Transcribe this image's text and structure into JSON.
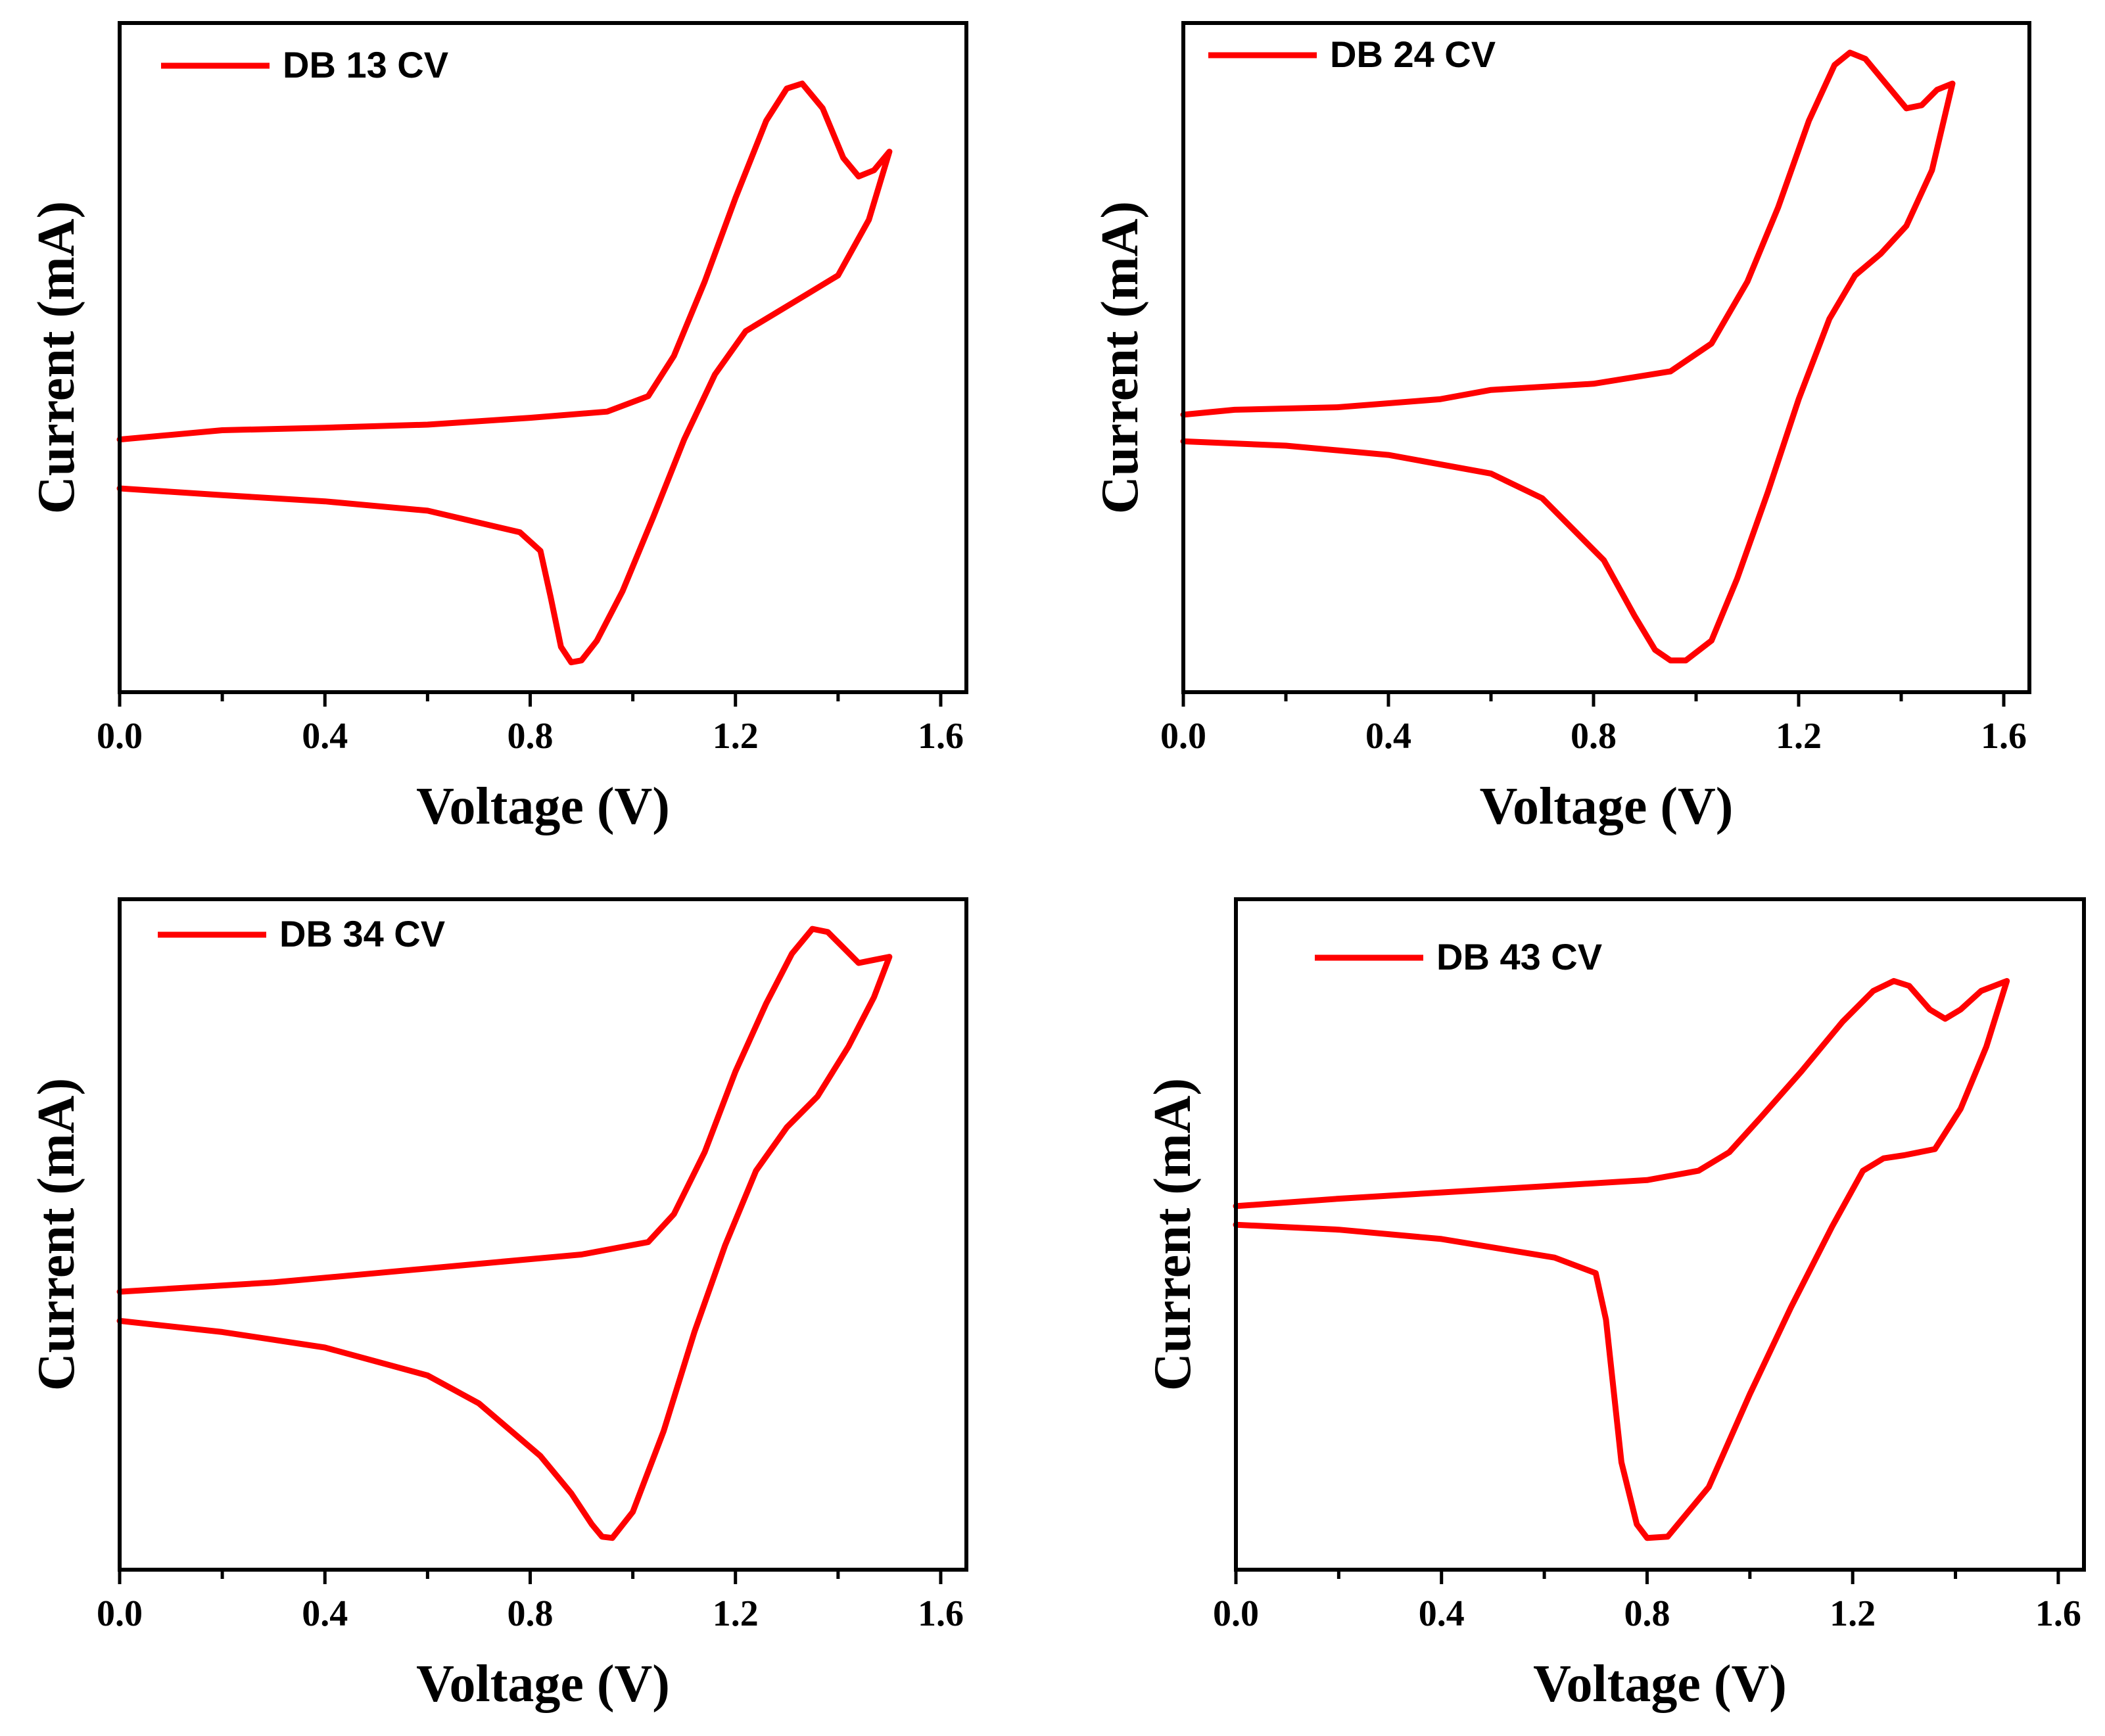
{
  "figure": {
    "line_color": "#ff0000",
    "axis_color": "#000000"
  },
  "chart_data": [
    {
      "type": "line",
      "legend": "DB 13 CV",
      "legend_placement": "top-left",
      "xlabel": "Voltage (V)",
      "ylabel": "Current (mA)",
      "xlim": [
        0.0,
        1.65
      ],
      "ylim": [
        0,
        100
      ],
      "y_ticks_shown": false,
      "x_ticks": [
        "0.0",
        "0.4",
        "0.8",
        "1.2",
        "1.6"
      ],
      "series": [
        {
          "name": "DB 13 CV",
          "x": [
            0.0,
            0.2,
            0.4,
            0.6,
            0.8,
            0.95,
            1.03,
            1.08,
            1.14,
            1.2,
            1.26,
            1.3,
            1.33,
            1.37,
            1.41,
            1.44,
            1.47,
            1.5,
            1.46,
            1.4,
            1.34,
            1.28,
            1.22,
            1.16,
            1.1,
            1.04,
            0.98,
            0.93,
            0.9,
            0.88,
            0.86,
            0.84,
            0.82,
            0.78,
            0.6,
            0.4,
            0.2,
            0.0
          ],
          "y": [
            36.5,
            38.0,
            38.4,
            38.9,
            40.0,
            41.0,
            43.5,
            50.0,
            62.0,
            75.5,
            88.0,
            93.2,
            94.0,
            90.0,
            82.0,
            79.0,
            80.0,
            83.0,
            72.0,
            63.0,
            60.0,
            57.0,
            54.0,
            47.0,
            36.5,
            24.0,
            12.0,
            4.0,
            0.8,
            0.5,
            3.0,
            11.0,
            18.5,
            21.5,
            25.0,
            26.5,
            27.5,
            28.6
          ]
        }
      ]
    },
    {
      "type": "line",
      "legend": "DB 24 CV",
      "legend_placement": "top-left",
      "xlabel": "Voltage (V)",
      "ylabel": "Current (mA)",
      "xlim": [
        0.0,
        1.65
      ],
      "ylim": [
        0,
        100
      ],
      "y_ticks_shown": false,
      "x_ticks": [
        "0.0",
        "0.4",
        "0.8",
        "1.2",
        "1.6"
      ],
      "series": [
        {
          "name": "DB 24 CV",
          "x": [
            0.0,
            0.1,
            0.3,
            0.5,
            0.6,
            0.8,
            0.95,
            1.03,
            1.1,
            1.16,
            1.22,
            1.27,
            1.3,
            1.33,
            1.37,
            1.41,
            1.44,
            1.47,
            1.5,
            1.46,
            1.41,
            1.36,
            1.31,
            1.26,
            1.2,
            1.14,
            1.08,
            1.03,
            0.98,
            0.95,
            0.92,
            0.88,
            0.82,
            0.7,
            0.6,
            0.4,
            0.2,
            0.0
          ],
          "y": [
            40.5,
            41.3,
            41.7,
            43.0,
            44.5,
            45.5,
            47.5,
            52.0,
            62.0,
            74.0,
            88.0,
            97.0,
            99.0,
            98.0,
            94.0,
            90.0,
            90.5,
            93.0,
            94.0,
            80.0,
            71.0,
            66.5,
            63.0,
            56.0,
            43.0,
            28.0,
            14.0,
            4.0,
            0.8,
            0.8,
            2.5,
            8.0,
            17.0,
            27.0,
            31.0,
            34.0,
            35.5,
            36.2
          ]
        }
      ]
    },
    {
      "type": "line",
      "legend": "DB 34 CV",
      "legend_placement": "top-left",
      "xlabel": "Voltage (V)",
      "ylabel": "Current (mA)",
      "xlim": [
        0.0,
        1.65
      ],
      "ylim": [
        0,
        100
      ],
      "y_ticks_shown": false,
      "x_ticks": [
        "0.0",
        "0.4",
        "0.8",
        "1.2",
        "1.6"
      ],
      "series": [
        {
          "name": "DB 34 CV",
          "x": [
            0.0,
            0.1,
            0.3,
            0.5,
            0.7,
            0.9,
            1.03,
            1.08,
            1.14,
            1.2,
            1.26,
            1.31,
            1.35,
            1.38,
            1.41,
            1.44,
            1.47,
            1.5,
            1.47,
            1.42,
            1.36,
            1.3,
            1.24,
            1.18,
            1.12,
            1.06,
            1.0,
            0.96,
            0.94,
            0.92,
            0.88,
            0.82,
            0.7,
            0.6,
            0.4,
            0.2,
            0.0
          ],
          "y": [
            40.5,
            41.0,
            42.0,
            43.5,
            45.0,
            46.5,
            48.5,
            53.0,
            63.0,
            76.0,
            87.0,
            95.0,
            99.0,
            98.5,
            96.0,
            93.5,
            94.0,
            94.5,
            88.0,
            80.0,
            72.0,
            67.0,
            60.0,
            48.0,
            34.0,
            18.0,
            5.0,
            0.8,
            1.0,
            3.0,
            8.0,
            14.0,
            22.5,
            27.0,
            31.5,
            34.0,
            35.8
          ]
        }
      ]
    },
    {
      "type": "line",
      "legend": "DB 43 CV",
      "legend_placement": "top-left",
      "xlabel": "Voltage (V)",
      "ylabel": "Current (mA)",
      "xlim": [
        0.0,
        1.65
      ],
      "ylim": [
        0,
        100
      ],
      "y_ticks_shown": false,
      "x_ticks": [
        "0.0",
        "0.4",
        "0.8",
        "1.2",
        "1.6"
      ],
      "series": [
        {
          "name": "DB 43 CV",
          "x": [
            0.0,
            0.2,
            0.4,
            0.6,
            0.8,
            0.9,
            0.96,
            1.02,
            1.1,
            1.18,
            1.24,
            1.28,
            1.31,
            1.35,
            1.38,
            1.41,
            1.45,
            1.5,
            1.46,
            1.41,
            1.36,
            1.3,
            1.26,
            1.22,
            1.16,
            1.08,
            1.0,
            0.92,
            0.84,
            0.8,
            0.78,
            0.75,
            0.72,
            0.7,
            0.62,
            0.4,
            0.2,
            0.0
          ],
          "y": [
            54.3,
            55.5,
            56.5,
            57.5,
            58.5,
            60.0,
            63.0,
            68.5,
            76.0,
            84.0,
            89.0,
            90.6,
            89.8,
            86.0,
            84.5,
            86.0,
            89.0,
            90.6,
            80.0,
            70.0,
            63.5,
            62.5,
            62.0,
            60.0,
            51.0,
            38.0,
            24.0,
            9.0,
            1.0,
            0.8,
            3.0,
            13.0,
            36.0,
            43.5,
            46.0,
            49.0,
            50.5,
            51.3
          ]
        }
      ]
    }
  ]
}
